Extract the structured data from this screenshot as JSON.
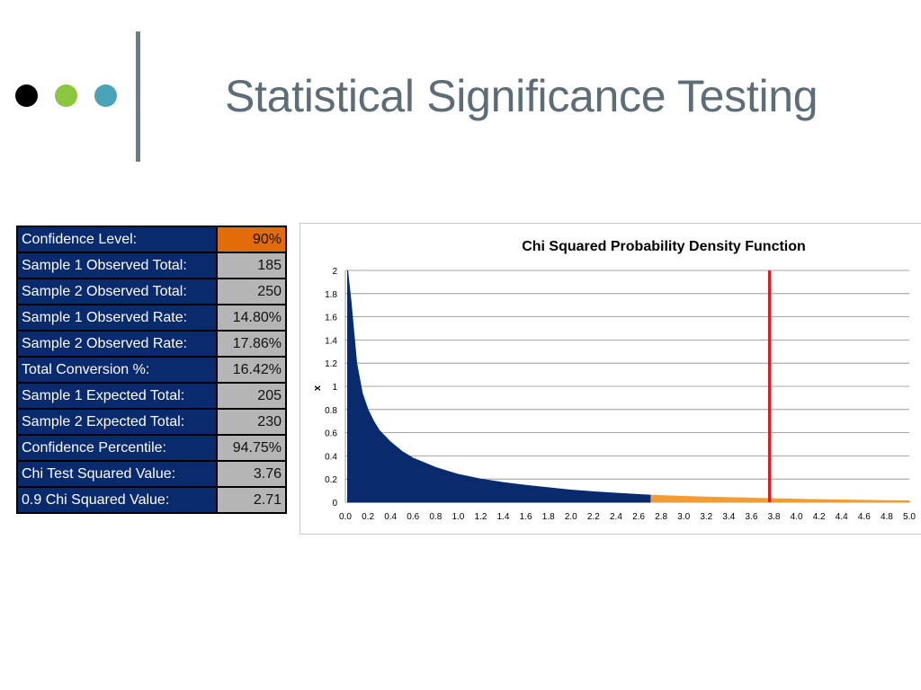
{
  "slide": {
    "title": "Statistical Significance Testing",
    "dots": [
      {
        "name": "black-dot",
        "color": "#000000"
      },
      {
        "name": "green-dot",
        "color": "#8cc63f"
      },
      {
        "name": "teal-dot",
        "color": "#4aa3b8"
      }
    ]
  },
  "stats_table": {
    "rows": [
      {
        "label": "Confidence Level:",
        "value": "90%",
        "highlight": true
      },
      {
        "label": "Sample 1 Observed Total:",
        "value": "185"
      },
      {
        "label": "Sample 2 Observed Total:",
        "value": "250"
      },
      {
        "label": "Sample 1 Observed Rate:",
        "value": "14.80%"
      },
      {
        "label": "Sample 2 Observed Rate:",
        "value": "17.86%"
      },
      {
        "label": "Total Conversion %:",
        "value": "16.42%"
      },
      {
        "label": "Sample 1 Expected Total:",
        "value": "205"
      },
      {
        "label": "Sample 2 Expected Total:",
        "value": "230"
      },
      {
        "label": "Confidence Percentile:",
        "value": "94.75%"
      },
      {
        "label": "Chi Test Squared Value:",
        "value": "3.76"
      },
      {
        "label": "0.9 Chi Squared Value:",
        "value": "2.71"
      }
    ]
  },
  "chart_data": {
    "type": "area",
    "title": "Chi Squared Probability Density Function",
    "ylabel": "x",
    "xlabel": "",
    "xlim": [
      0,
      5
    ],
    "ylim": [
      0,
      2
    ],
    "xticks": [
      "0.0",
      "0.2",
      "0.4",
      "0.6",
      "0.8",
      "1.0",
      "1.2",
      "1.4",
      "1.6",
      "1.8",
      "2.0",
      "2.2",
      "2.4",
      "2.6",
      "2.8",
      "3.0",
      "3.2",
      "3.4",
      "3.6",
      "3.8",
      "4.0",
      "4.2",
      "4.4",
      "4.6",
      "4.8",
      "5.0"
    ],
    "yticks": [
      "0",
      "0.2",
      "0.4",
      "0.6",
      "0.8",
      "1",
      "1.2",
      "1.4",
      "1.6",
      "1.8",
      "2"
    ],
    "grid": true,
    "series": [
      {
        "x": [
          0.02,
          0.05,
          0.1,
          0.15,
          0.2,
          0.25,
          0.3,
          0.4,
          0.5,
          0.6,
          0.7,
          0.8,
          0.9,
          1.0,
          1.2,
          1.4,
          1.6,
          1.8,
          2.0,
          2.2,
          2.4,
          2.71
        ],
        "y": [
          2.0,
          1.73,
          1.2,
          0.94,
          0.8,
          0.7,
          0.62,
          0.52,
          0.44,
          0.38,
          0.34,
          0.3,
          0.27,
          0.24,
          0.2,
          0.17,
          0.145,
          0.125,
          0.105,
          0.09,
          0.078,
          0.06
        ],
        "color": "#0a2a6e"
      },
      {
        "x": [
          2.71,
          3.0,
          3.2,
          3.4,
          3.6,
          3.8,
          4.0,
          4.2,
          4.4,
          4.6,
          4.8,
          5.0
        ],
        "y": [
          0.06,
          0.05,
          0.045,
          0.04,
          0.035,
          0.03,
          0.026,
          0.022,
          0.019,
          0.016,
          0.014,
          0.012
        ],
        "color": "#f39c34"
      }
    ],
    "marker_line": {
      "x": 3.76,
      "color": "#e31a1c"
    }
  }
}
